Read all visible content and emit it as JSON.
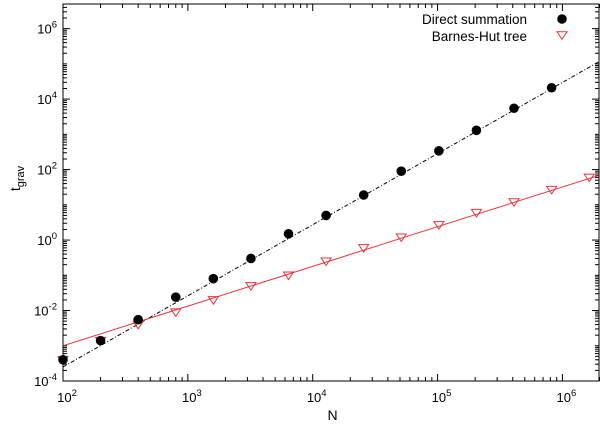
{
  "chart_data": {
    "type": "scatter",
    "title": "",
    "xlabel": "N",
    "ylabel": "t",
    "ylabel_sub": "grav",
    "xscale": "log",
    "yscale": "log",
    "xlim": [
      100,
      2000000
    ],
    "ylim": [
      0.0001,
      5000000
    ],
    "grid": false,
    "legend_position": "top-right",
    "x_ticks": [
      {
        "value": 100,
        "base": "10",
        "exp": "2"
      },
      {
        "value": 1000,
        "base": "10",
        "exp": "3"
      },
      {
        "value": 10000,
        "base": "10",
        "exp": "4"
      },
      {
        "value": 100000,
        "base": "10",
        "exp": "5"
      },
      {
        "value": 1000000,
        "base": "10",
        "exp": "6"
      }
    ],
    "y_ticks": [
      {
        "value": 0.0001,
        "base": "10",
        "exp": "-4"
      },
      {
        "value": 0.01,
        "base": "10",
        "exp": "-2"
      },
      {
        "value": 1,
        "base": "10",
        "exp": "0"
      },
      {
        "value": 100,
        "base": "10",
        "exp": "2"
      },
      {
        "value": 10000,
        "base": "10",
        "exp": "4"
      },
      {
        "value": 1000000,
        "base": "10",
        "exp": "6"
      }
    ],
    "series": [
      {
        "name": "Direct summation",
        "marker": "filled-circle",
        "color": "#000000",
        "x": [
          100,
          200,
          400,
          800,
          1600,
          3200,
          6400,
          12800,
          25600,
          51200,
          102400,
          204800,
          409600,
          819200
        ],
        "y": [
          0.0004,
          0.0014,
          0.0055,
          0.024,
          0.08,
          0.3,
          1.5,
          5,
          19,
          90,
          340,
          1300,
          5500,
          21000
        ]
      },
      {
        "name": "Barnes-Hut tree",
        "marker": "open-triangle-down",
        "color": "#e8333a",
        "x": [
          100,
          200,
          400,
          800,
          1600,
          3200,
          6400,
          12800,
          25600,
          51200,
          102400,
          204800,
          409600,
          819200,
          1638400
        ],
        "y": [
          0.0004,
          0.0014,
          0.004,
          0.009,
          0.02,
          0.05,
          0.1,
          0.25,
          0.6,
          1.2,
          2.7,
          6,
          12,
          27,
          60
        ]
      }
    ],
    "fit_lines": [
      {
        "series": "Direct summation",
        "style": "dash-dot",
        "color": "#000000",
        "x": [
          100,
          2000000
        ],
        "y": [
          0.00025,
          120000
        ]
      },
      {
        "series": "Barnes-Hut tree",
        "style": "solid",
        "color": "#e8333a",
        "x": [
          100,
          2000000
        ],
        "y": [
          0.001,
          70
        ]
      }
    ]
  }
}
